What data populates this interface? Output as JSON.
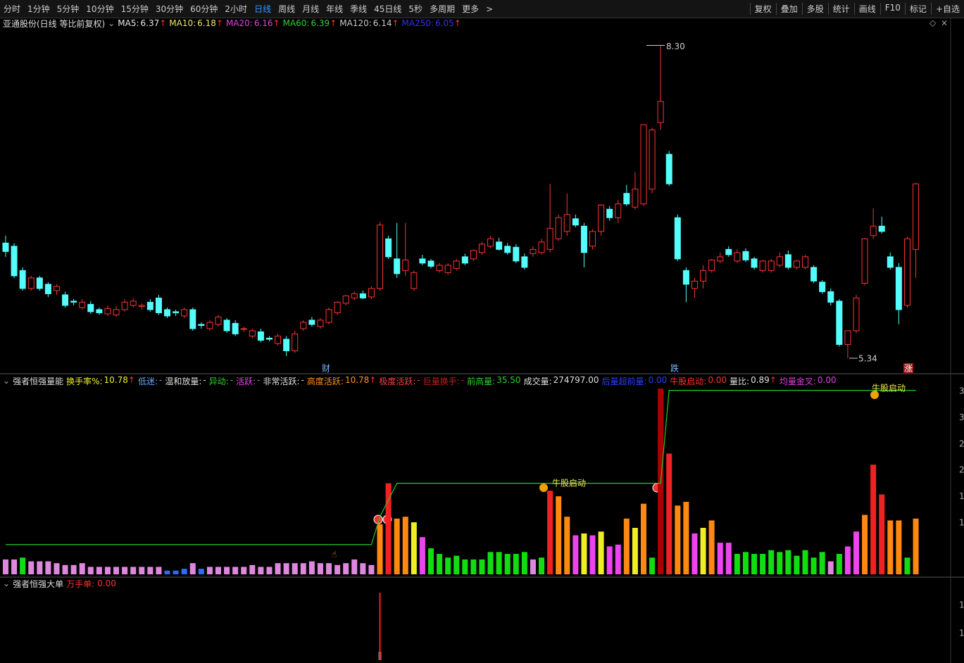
{
  "toolbar": {
    "periods": [
      "分时",
      "1分钟",
      "5分钟",
      "10分钟",
      "15分钟",
      "30分钟",
      "60分钟",
      "2小时",
      "日线",
      "周线",
      "月线",
      "年线",
      "季线",
      "45日线",
      "5秒",
      "多周期",
      "更多"
    ],
    "active": "日线",
    "tools": [
      "复权",
      "叠加",
      "多股",
      "统计",
      "画线",
      "F10",
      "标记",
      "+自选"
    ]
  },
  "price_panel": {
    "title": "亚通股份(日线 等比前复权)",
    "ma_legend": [
      {
        "label": "MA5:",
        "value": "6.37",
        "color": "#e8e8e8"
      },
      {
        "label": "MA10:",
        "value": "6.18",
        "color": "#e8e860"
      },
      {
        "label": "MA20:",
        "value": "6.16",
        "color": "#e040e0"
      },
      {
        "label": "MA60:",
        "value": "6.39",
        "color": "#30d030"
      },
      {
        "label": "MA120:",
        "value": "6.14",
        "color": "#c8c8c8"
      },
      {
        "label": "MA250:",
        "value": "6.05",
        "color": "#3030f0"
      }
    ],
    "ylim": [
      5.2,
      8.53
    ],
    "up_color": "#ff3232",
    "down_color": "#54fcfc",
    "high_label": {
      "value": 8.3,
      "label": "8.30"
    },
    "low_label": {
      "value": 5.34,
      "label": "5.34"
    },
    "markers": [
      "财",
      "跌",
      "涨"
    ],
    "candles": [
      [
        6.43,
        6.5,
        6.3,
        6.35
      ],
      [
        6.4,
        6.43,
        6.1,
        6.12
      ],
      [
        6.17,
        6.2,
        5.98,
        6.0
      ],
      [
        6.0,
        6.12,
        5.98,
        6.1
      ],
      [
        6.1,
        6.12,
        5.98,
        6.0
      ],
      [
        6.04,
        6.06,
        5.92,
        5.95
      ],
      [
        5.98,
        6.04,
        5.94,
        6.02
      ],
      [
        5.94,
        5.97,
        5.82,
        5.84
      ],
      [
        5.88,
        5.9,
        5.84,
        5.87
      ],
      [
        5.82,
        5.9,
        5.8,
        5.87
      ],
      [
        5.85,
        5.88,
        5.76,
        5.78
      ],
      [
        5.8,
        5.82,
        5.75,
        5.77
      ],
      [
        5.76,
        5.84,
        5.74,
        5.81
      ],
      [
        5.75,
        5.83,
        5.73,
        5.8
      ],
      [
        5.8,
        5.9,
        5.78,
        5.87
      ],
      [
        5.84,
        5.91,
        5.82,
        5.88
      ],
      [
        5.83,
        5.86,
        5.8,
        5.84
      ],
      [
        5.87,
        5.9,
        5.78,
        5.8
      ],
      [
        5.91,
        5.94,
        5.75,
        5.77
      ],
      [
        5.8,
        5.82,
        5.72,
        5.74
      ],
      [
        5.78,
        5.8,
        5.74,
        5.77
      ],
      [
        5.74,
        5.82,
        5.72,
        5.8
      ],
      [
        5.8,
        5.82,
        5.6,
        5.62
      ],
      [
        5.66,
        5.68,
        5.62,
        5.65
      ],
      [
        5.62,
        5.7,
        5.6,
        5.68
      ],
      [
        5.66,
        5.75,
        5.64,
        5.73
      ],
      [
        5.7,
        5.72,
        5.58,
        5.6
      ],
      [
        5.67,
        5.7,
        5.55,
        5.57
      ],
      [
        5.62,
        5.64,
        5.59,
        5.62
      ],
      [
        5.55,
        5.62,
        5.53,
        5.6
      ],
      [
        5.59,
        5.62,
        5.49,
        5.51
      ],
      [
        5.53,
        5.55,
        5.5,
        5.52
      ],
      [
        5.48,
        5.57,
        5.46,
        5.55
      ],
      [
        5.52,
        5.55,
        5.36,
        5.41
      ],
      [
        5.41,
        5.6,
        5.39,
        5.57
      ],
      [
        5.62,
        5.7,
        5.6,
        5.68
      ],
      [
        5.7,
        5.73,
        5.64,
        5.66
      ],
      [
        5.64,
        5.72,
        5.62,
        5.7
      ],
      [
        5.68,
        5.82,
        5.66,
        5.8
      ],
      [
        5.77,
        5.88,
        5.75,
        5.87
      ],
      [
        5.86,
        5.94,
        5.84,
        5.93
      ],
      [
        5.91,
        5.97,
        5.89,
        5.95
      ],
      [
        5.95,
        5.98,
        5.9,
        5.91
      ],
      [
        5.92,
        6.02,
        5.9,
        6.0
      ],
      [
        6.0,
        6.63,
        5.98,
        6.6
      ],
      [
        6.47,
        6.5,
        6.28,
        6.3
      ],
      [
        6.28,
        6.62,
        6.1,
        6.14
      ],
      [
        6.17,
        6.62,
        6.12,
        6.27
      ],
      [
        6.0,
        6.17,
        5.98,
        6.15
      ],
      [
        6.28,
        6.32,
        6.22,
        6.24
      ],
      [
        6.26,
        6.28,
        6.19,
        6.21
      ],
      [
        6.17,
        6.24,
        6.15,
        6.22
      ],
      [
        6.15,
        6.24,
        6.13,
        6.22
      ],
      [
        6.19,
        6.28,
        6.17,
        6.26
      ],
      [
        6.3,
        6.33,
        6.22,
        6.24
      ],
      [
        6.28,
        6.37,
        6.26,
        6.36
      ],
      [
        6.34,
        6.44,
        6.32,
        6.42
      ],
      [
        6.4,
        6.5,
        6.38,
        6.47
      ],
      [
        6.44,
        6.48,
        6.36,
        6.37
      ],
      [
        6.4,
        6.43,
        6.32,
        6.34
      ],
      [
        6.39,
        6.42,
        6.24,
        6.26
      ],
      [
        6.3,
        6.33,
        6.18,
        6.2
      ],
      [
        6.33,
        6.4,
        6.3,
        6.37
      ],
      [
        6.34,
        6.47,
        6.32,
        6.44
      ],
      [
        6.37,
        6.99,
        6.34,
        6.57
      ],
      [
        6.47,
        6.7,
        6.45,
        6.67
      ],
      [
        6.54,
        6.9,
        6.5,
        6.7
      ],
      [
        6.66,
        6.7,
        6.58,
        6.6
      ],
      [
        6.59,
        6.62,
        6.2,
        6.34
      ],
      [
        6.4,
        6.56,
        6.37,
        6.54
      ],
      [
        6.54,
        6.8,
        6.5,
        6.79
      ],
      [
        6.75,
        6.78,
        6.64,
        6.67
      ],
      [
        6.67,
        6.84,
        6.62,
        6.8
      ],
      [
        6.9,
        6.98,
        6.78,
        6.8
      ],
      [
        6.77,
        7.1,
        6.75,
        6.94
      ],
      [
        6.8,
        7.55,
        6.78,
        7.55
      ],
      [
        6.94,
        7.52,
        6.9,
        7.5
      ],
      [
        7.57,
        8.3,
        7.5,
        7.77
      ],
      [
        7.27,
        7.3,
        6.97,
        6.99
      ],
      [
        6.67,
        6.7,
        6.26,
        6.28
      ],
      [
        6.17,
        6.2,
        5.87,
        6.04
      ],
      [
        6.0,
        6.1,
        5.91,
        6.07
      ],
      [
        6.07,
        6.22,
        6.0,
        6.17
      ],
      [
        6.17,
        6.28,
        6.15,
        6.27
      ],
      [
        6.26,
        6.34,
        6.24,
        6.3
      ],
      [
        6.37,
        6.4,
        6.3,
        6.32
      ],
      [
        6.26,
        6.37,
        6.24,
        6.34
      ],
      [
        6.35,
        6.38,
        6.25,
        6.27
      ],
      [
        6.28,
        6.3,
        6.18,
        6.2
      ],
      [
        6.17,
        6.27,
        6.15,
        6.26
      ],
      [
        6.17,
        6.28,
        6.15,
        6.26
      ],
      [
        6.22,
        6.34,
        6.2,
        6.3
      ],
      [
        6.32,
        6.36,
        6.18,
        6.2
      ],
      [
        6.2,
        6.27,
        6.18,
        6.26
      ],
      [
        6.2,
        6.32,
        6.18,
        6.3
      ],
      [
        6.2,
        6.22,
        6.05,
        6.07
      ],
      [
        6.06,
        6.08,
        5.95,
        5.97
      ],
      [
        5.97,
        6.0,
        5.84,
        5.87
      ],
      [
        5.88,
        5.9,
        5.45,
        5.47
      ],
      [
        5.47,
        5.6,
        5.34,
        5.6
      ],
      [
        5.6,
        5.94,
        5.58,
        5.91
      ],
      [
        6.05,
        6.48,
        6.03,
        6.47
      ],
      [
        6.5,
        6.76,
        6.47,
        6.59
      ],
      [
        6.59,
        6.68,
        6.52,
        6.54
      ],
      [
        6.3,
        6.34,
        6.18,
        6.2
      ],
      [
        6.2,
        6.24,
        5.66,
        5.8
      ],
      [
        5.84,
        6.49,
        5.82,
        6.47
      ],
      [
        6.37,
        7.0,
        6.1,
        6.99
      ]
    ]
  },
  "volume_panel": {
    "title": "强者恒强量能",
    "legend": [
      {
        "label": "换手率%:",
        "value": "10.78",
        "color": "#eeee30",
        "arrow": true
      },
      {
        "label": "低迷:",
        "value": "-",
        "color": "#60a8ff"
      },
      {
        "label": "温和放量:",
        "value": "-",
        "color": "#e0e0e0"
      },
      {
        "label": "异动:",
        "value": "-",
        "color": "#30d030"
      },
      {
        "label": "活跃:",
        "value": "-",
        "color": "#f040f0"
      },
      {
        "label": "非常活跃:",
        "value": "-",
        "color": "#e0e0e0"
      },
      {
        "label": "高度活跃:",
        "value": "10.78",
        "color": "#ff9020",
        "arrow": true
      },
      {
        "label": "极度活跃:",
        "value": "-",
        "color": "#ff4040"
      },
      {
        "label": "巨量换手:",
        "value": "-",
        "color": "#c02020"
      },
      {
        "label": "前高量:",
        "value": "35.50",
        "color": "#30d030"
      },
      {
        "label": "成交量:",
        "value": "274797.00",
        "color": "#e0e0e0"
      },
      {
        "label": "后量超前量:",
        "value": "0.00",
        "color": "#2840ff"
      },
      {
        "label": "牛股启动:",
        "value": "0.00",
        "color": "#ff3030"
      },
      {
        "label": "量比:",
        "value": "0.89",
        "color": "#e0e0e0",
        "arrow": true
      },
      {
        "label": "均量金叉:",
        "value": "0.00",
        "color": "#e040e0"
      }
    ],
    "ylim": [
      0,
      100
    ],
    "axis_labels": [
      "3",
      "3",
      "2",
      "2",
      "1",
      "1"
    ],
    "annotations": [
      "牛股启动",
      "牛股启动"
    ],
    "line_color": "#22cc22",
    "values": [
      8,
      8,
      9,
      7,
      7,
      7,
      6,
      5,
      5,
      6,
      4,
      4,
      4,
      4,
      4,
      4,
      4,
      4,
      4,
      2,
      2,
      3,
      6,
      3,
      4,
      4,
      4,
      4,
      4,
      5,
      4,
      4,
      6,
      6,
      6,
      6,
      7,
      6,
      6,
      5,
      6,
      8,
      6,
      5,
      27,
      49,
      30,
      31,
      28,
      20,
      14,
      11,
      9,
      10,
      8,
      8,
      8,
      12,
      12,
      11,
      11,
      12,
      8,
      9,
      45,
      42,
      31,
      21,
      22,
      21,
      23,
      15,
      16,
      30,
      25,
      38,
      9,
      100,
      65,
      37,
      39,
      22,
      25,
      29,
      17,
      17,
      11,
      12,
      11,
      11,
      13,
      12,
      13,
      10,
      13,
      9,
      12,
      7,
      11,
      15,
      23,
      32,
      59,
      43,
      29,
      29,
      9,
      30
    ],
    "colors": [
      "#d8d",
      "#d8d",
      "#1d1",
      "#d8d",
      "#d8d",
      "#d8d",
      "#d8d",
      "#d8d",
      "#d8d",
      "#d8d",
      "#d8d",
      "#d8d",
      "#d8d",
      "#d8d",
      "#d8d",
      "#d8d",
      "#d8d",
      "#d8d",
      "#d8d",
      "#36f",
      "#36f",
      "#36f",
      "#d8d",
      "#36f",
      "#d8d",
      "#d8d",
      "#d8d",
      "#d8d",
      "#d8d",
      "#d8d",
      "#d8d",
      "#d8d",
      "#d8d",
      "#d8d",
      "#d8d",
      "#d8d",
      "#d8d",
      "#d8d",
      "#d8d",
      "#d8d",
      "#d8d",
      "#d8d",
      "#d8d",
      "#d8d",
      "#f81",
      "#e22",
      "#f81",
      "#f81",
      "#ee2",
      "#e4e",
      "#1d1",
      "#1d1",
      "#1d1",
      "#1d1",
      "#1d1",
      "#1d1",
      "#1d1",
      "#1d1",
      "#1d1",
      "#1d1",
      "#1d1",
      "#1d1",
      "#d8d",
      "#1d1",
      "#e22",
      "#f81",
      "#f81",
      "#e4e",
      "#ee2",
      "#e4e",
      "#ee2",
      "#e4e",
      "#e4e",
      "#f81",
      "#ee2",
      "#f81",
      "#1d1",
      "#a00",
      "#e22",
      "#f81",
      "#f81",
      "#e4e",
      "#ee2",
      "#f81",
      "#e4e",
      "#e4e",
      "#1d1",
      "#1d1",
      "#1d1",
      "#1d1",
      "#1d1",
      "#1d1",
      "#1d1",
      "#1d1",
      "#1d1",
      "#1d1",
      "#1d1",
      "#d8d",
      "#1d1",
      "#e4e",
      "#e4e",
      "#f81",
      "#e22",
      "#e22",
      "#f81",
      "#f81",
      "#1d1",
      "#f81"
    ],
    "line": [
      16,
      16,
      16,
      16,
      16,
      16,
      16,
      16,
      16,
      16,
      16,
      16,
      16,
      16,
      16,
      16,
      16,
      16,
      16,
      16,
      16,
      16,
      16,
      16,
      16,
      16,
      16,
      16,
      16,
      16,
      16,
      16,
      16,
      16,
      16,
      16,
      16,
      16,
      16,
      16,
      16,
      16,
      16,
      16,
      31,
      40,
      49,
      49,
      49,
      49,
      49,
      49,
      49,
      49,
      49,
      49,
      49,
      49,
      49,
      49,
      49,
      49,
      49,
      49,
      49,
      49,
      49,
      49,
      49,
      49,
      49,
      49,
      49,
      49,
      49,
      49,
      49,
      49,
      99,
      99,
      99,
      99,
      99,
      99,
      99,
      99,
      99,
      99,
      99,
      99,
      99,
      99,
      99,
      99,
      99,
      99,
      99,
      99,
      99,
      99,
      99,
      99,
      99,
      99,
      99,
      99,
      99,
      99
    ]
  },
  "orders_panel": {
    "title": "强者恒强大单",
    "legend_label": "万手单:",
    "legend_value": "0.00",
    "ylim": [
      0,
      100
    ],
    "axis_labels": [
      "1",
      "1"
    ],
    "values": [
      0,
      0,
      0,
      0,
      0,
      0,
      0,
      0,
      0,
      0,
      0,
      0,
      0,
      0,
      0,
      0,
      0,
      0,
      0,
      0,
      0,
      0,
      0,
      0,
      0,
      0,
      0,
      0,
      0,
      0,
      0,
      0,
      0,
      0,
      0,
      0,
      0,
      0,
      0,
      0,
      0,
      0,
      0,
      0,
      100,
      0,
      0,
      0,
      0,
      0,
      0,
      0,
      0,
      0,
      0,
      0,
      0,
      0,
      0,
      0,
      0,
      0,
      0,
      0,
      0,
      0,
      0,
      0,
      0,
      0,
      0,
      0,
      0,
      0,
      0,
      0,
      0,
      0,
      0,
      0,
      0,
      0,
      0,
      0,
      0,
      0,
      0,
      0,
      0,
      0,
      0,
      0,
      0,
      0,
      0,
      0,
      0,
      0,
      0,
      0,
      0,
      0,
      0,
      0,
      0,
      0,
      0,
      0
    ]
  }
}
